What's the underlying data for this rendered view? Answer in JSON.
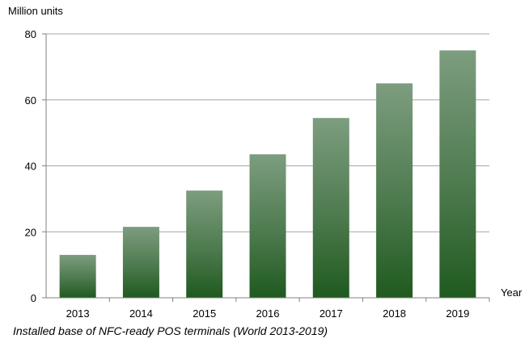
{
  "chart_data": {
    "type": "bar",
    "ylabel": "Million units",
    "xlabel": "Year",
    "categories": [
      "2013",
      "2014",
      "2015",
      "2016",
      "2017",
      "2018",
      "2019"
    ],
    "values": [
      13,
      21.5,
      32.5,
      43.5,
      54.5,
      65,
      75
    ],
    "ylim": [
      0,
      80
    ],
    "yticks": [
      0,
      20,
      40,
      60,
      80
    ],
    "grid": true,
    "bar_color_top": "#7d9d7f",
    "bar_color_bottom": "#1f5a1f",
    "caption": "Installed base of NFC-ready POS terminals (World 2013-2019)"
  }
}
